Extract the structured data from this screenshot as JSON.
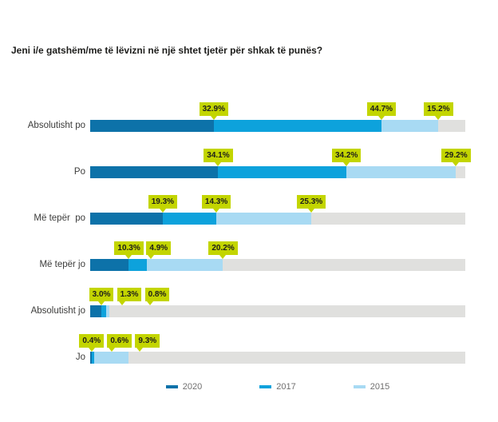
{
  "title": "Jeni i/e gatshëm/me të lëvizni në një shtet tjetër për shkak të punës?",
  "colors": {
    "series_2020": "#0d72a9",
    "series_2017": "#0da2dc",
    "series_2015": "#a8daf3",
    "track": "#e0e0de",
    "value_label_bg": "#c3d500",
    "value_label_text": "#1d1d1b",
    "title_text": "#1d1d1b",
    "category_text": "#3c3c3b",
    "legend_text": "#706f6f"
  },
  "legend": {
    "position": "bottom",
    "items": [
      {
        "label": "2020",
        "color": "#0d72a9"
      },
      {
        "label": "2017",
        "color": "#0da2dc"
      },
      {
        "label": "2015",
        "color": "#a8daf3"
      }
    ]
  },
  "chart_data": {
    "type": "bar",
    "variant": "horizontal-stacked",
    "title": "Jeni i/e gatshëm/me të lëvizni në një shtet tjetër për shkak të punës?",
    "xlim": [
      0,
      100
    ],
    "value_suffix": "%",
    "grid": false,
    "track_color": "#e0e0de",
    "value_label_bg": "#c3d500",
    "categories": [
      "Absolutisht po",
      "Po",
      "Më tepër  po",
      "Më tepër jo",
      "Absolutisht jo",
      "Jo"
    ],
    "series": [
      {
        "name": "2020",
        "color": "#0d72a9",
        "values": [
          32.9,
          34.1,
          19.3,
          10.3,
          3.0,
          0.4
        ]
      },
      {
        "name": "2017",
        "color": "#0da2dc",
        "values": [
          44.7,
          34.2,
          14.3,
          4.9,
          1.3,
          0.6
        ]
      },
      {
        "name": "2015",
        "color": "#a8daf3",
        "values": [
          15.2,
          29.2,
          25.3,
          20.2,
          0.8,
          9.3
        ]
      }
    ]
  }
}
